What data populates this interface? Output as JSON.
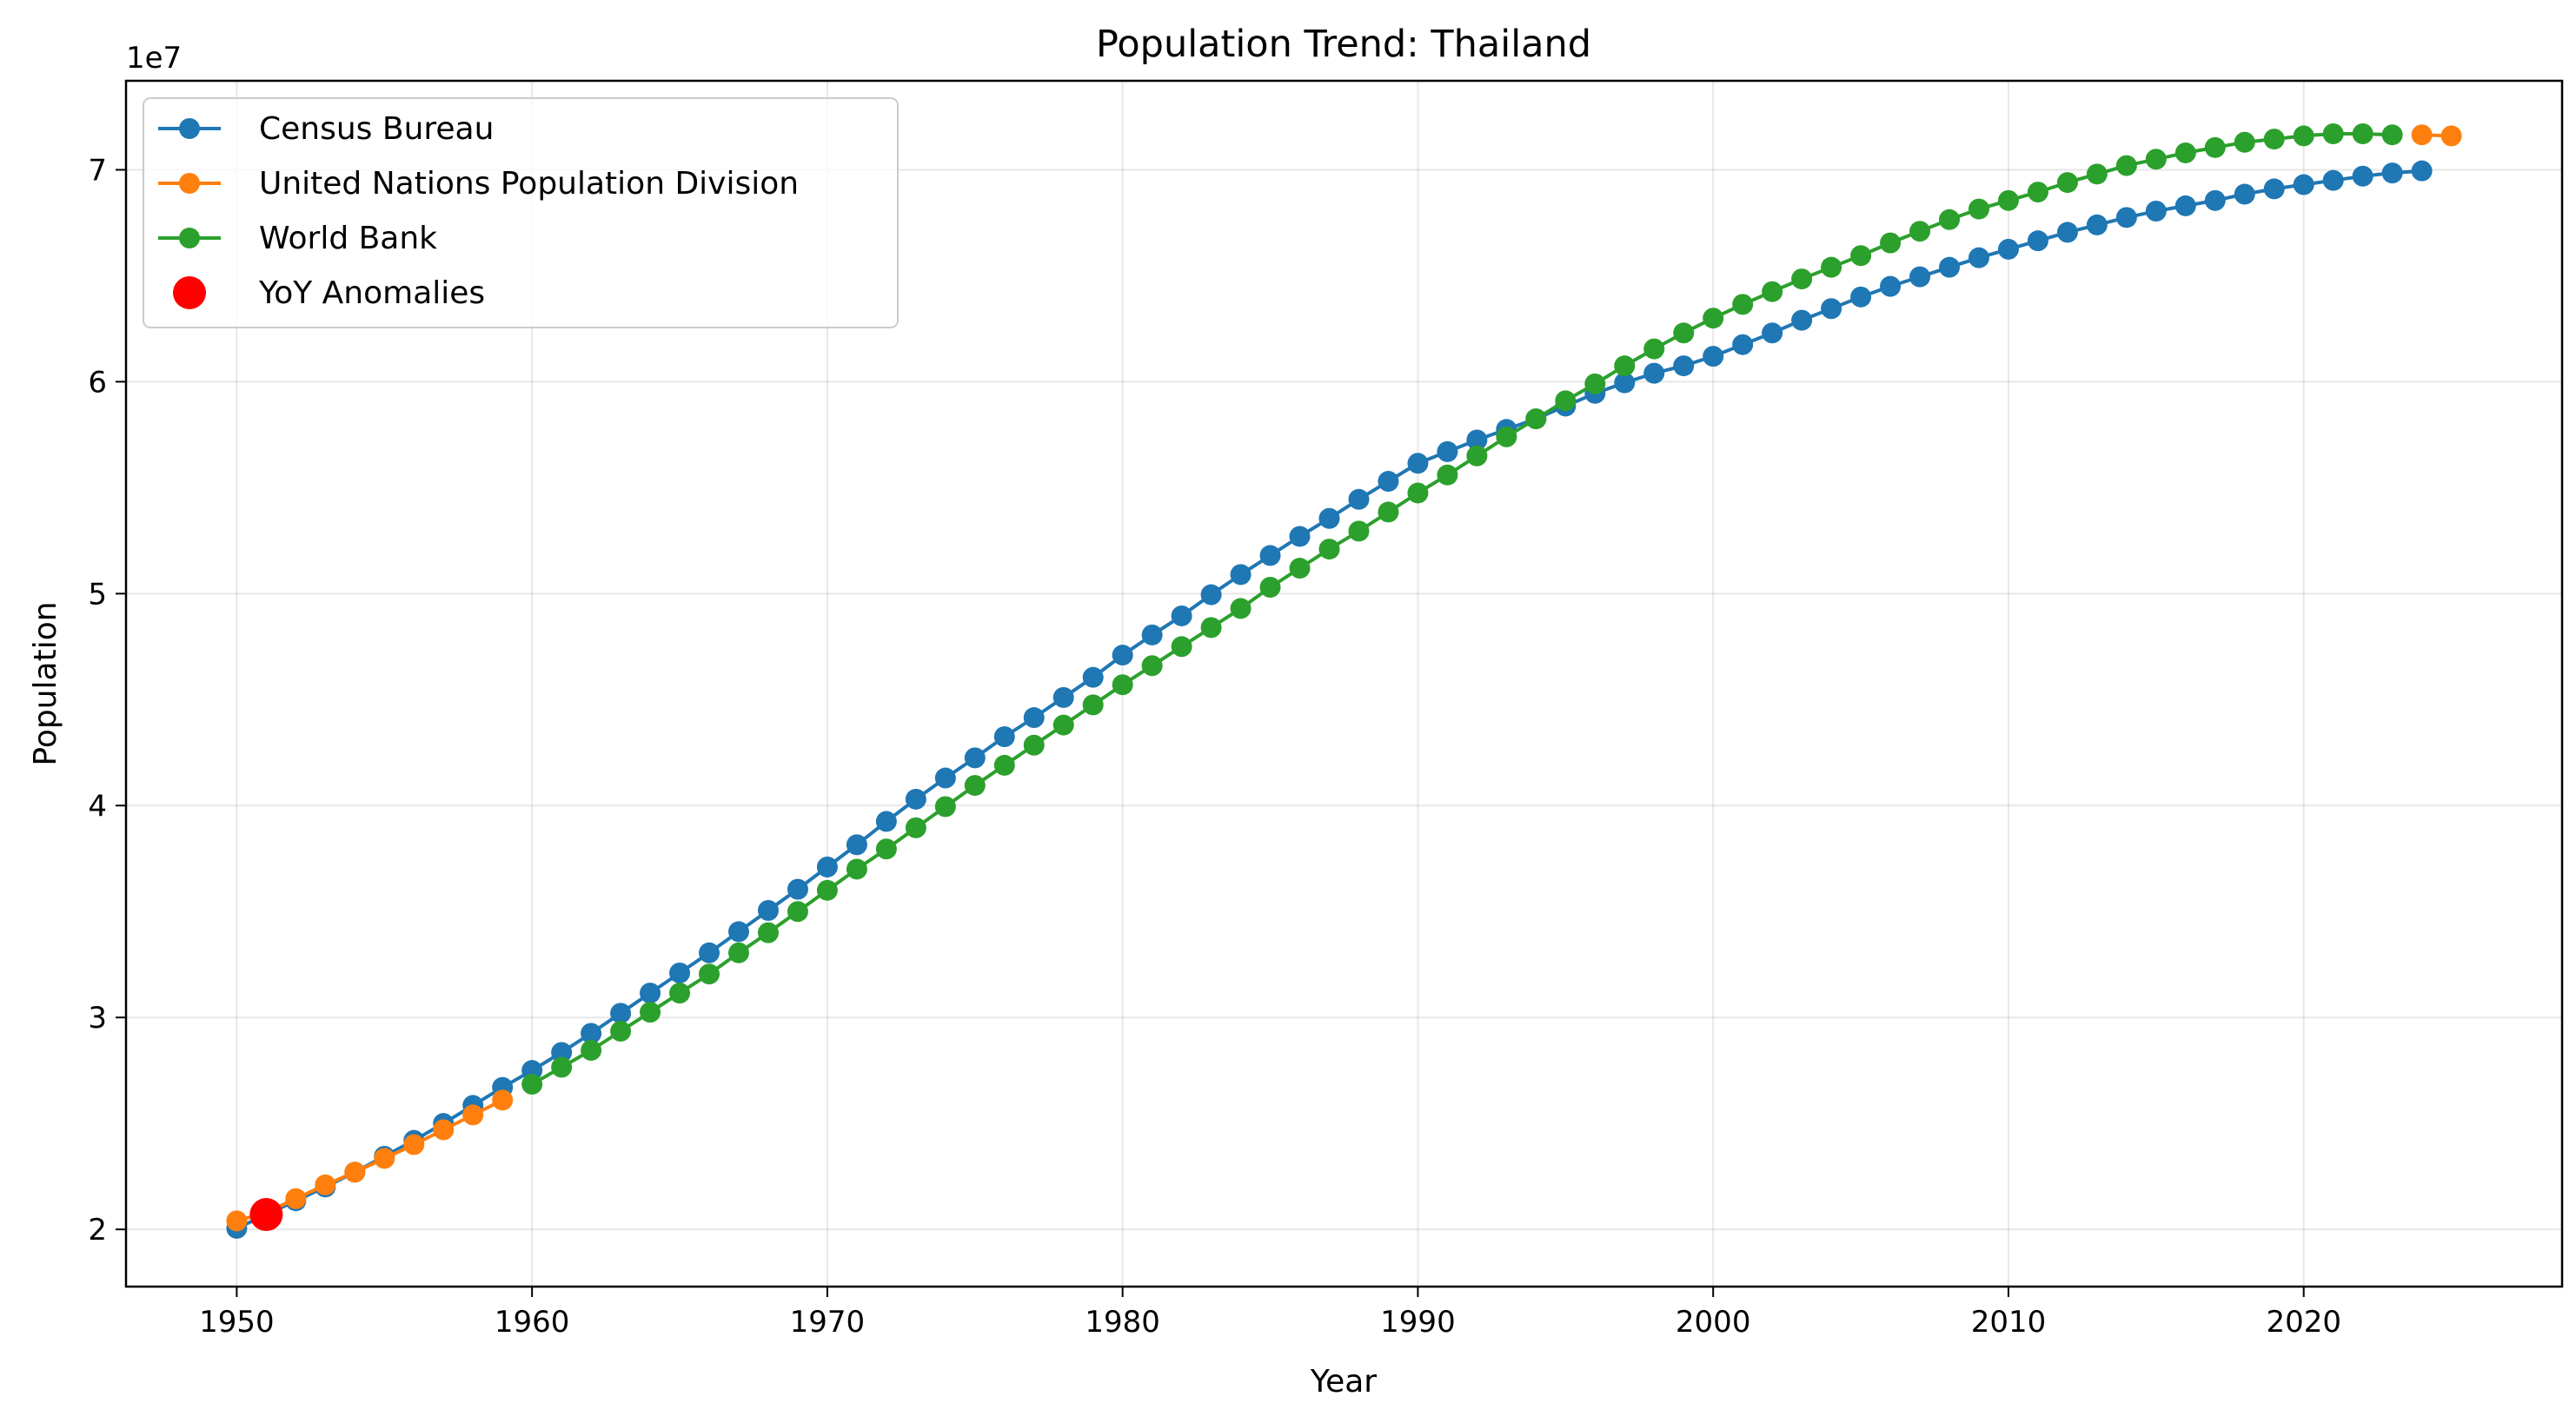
{
  "chart_data": {
    "type": "line",
    "title": "Population Trend: Thailand",
    "xlabel": "Year",
    "ylabel": "Population",
    "y_offset_label": "1e7",
    "xlim": [
      1946.25,
      2028.75
    ],
    "ylim": [
      17300000,
      74200000
    ],
    "y_multiplier": 10000000,
    "x_ticks": [
      1950,
      1960,
      1970,
      1980,
      1990,
      2000,
      2010,
      2020
    ],
    "y_ticks": [
      2,
      3,
      4,
      5,
      6,
      7
    ],
    "grid": true,
    "legend_position": "upper-left",
    "series": [
      {
        "name": "Census Bureau",
        "color": "#1f77b4",
        "x": [
          1950,
          1951,
          1952,
          1953,
          1954,
          1955,
          1956,
          1957,
          1958,
          1959,
          1960,
          1961,
          1962,
          1963,
          1964,
          1965,
          1966,
          1967,
          1968,
          1969,
          1970,
          1971,
          1972,
          1973,
          1974,
          1975,
          1976,
          1977,
          1978,
          1979,
          1980,
          1981,
          1982,
          1983,
          1984,
          1985,
          1986,
          1987,
          1988,
          1989,
          1990,
          1991,
          1992,
          1993,
          1994,
          1995,
          1996,
          1997,
          1998,
          1999,
          2000,
          2001,
          2002,
          2003,
          2004,
          2005,
          2006,
          2007,
          2008,
          2009,
          2010,
          2011,
          2012,
          2013,
          2014,
          2015,
          2016,
          2017,
          2018,
          2019,
          2020,
          2021,
          2022,
          2023,
          2024
        ],
        "y": [
          20050000,
          20700000,
          21350000,
          22000000,
          22700000,
          23450000,
          24200000,
          25000000,
          25850000,
          26700000,
          27500000,
          28350000,
          29250000,
          30200000,
          31150000,
          32100000,
          33050000,
          34050000,
          35050000,
          36050000,
          37100000,
          38150000,
          39250000,
          40300000,
          41300000,
          42250000,
          43250000,
          44150000,
          45100000,
          46050000,
          47100000,
          48050000,
          48950000,
          49950000,
          50900000,
          51800000,
          52700000,
          53550000,
          54450000,
          55300000,
          56150000,
          56700000,
          57250000,
          57750000,
          58250000,
          58850000,
          59450000,
          59950000,
          60400000,
          60750000,
          61200000,
          61750000,
          62300000,
          62900000,
          63450000,
          64000000,
          64500000,
          64950000,
          65400000,
          65850000,
          66250000,
          66650000,
          67050000,
          67400000,
          67750000,
          68050000,
          68300000,
          68550000,
          68850000,
          69100000,
          69300000,
          69500000,
          69700000,
          69850000,
          69950000
        ]
      },
      {
        "name": "United Nations Population Division",
        "color": "#ff7f0e",
        "x": [
          1950,
          1951,
          1952,
          1953,
          1954,
          1955,
          1956,
          1957,
          1958,
          1959,
          2024,
          2025
        ],
        "y": [
          20400000,
          20800000,
          21450000,
          22100000,
          22700000,
          23350000,
          24000000,
          24700000,
          25400000,
          26100000,
          71650000,
          71600000
        ]
      },
      {
        "name": "World Bank",
        "color": "#2ca02c",
        "x": [
          1960,
          1961,
          1962,
          1963,
          1964,
          1965,
          1966,
          1967,
          1968,
          1969,
          1970,
          1971,
          1972,
          1973,
          1974,
          1975,
          1976,
          1977,
          1978,
          1979,
          1980,
          1981,
          1982,
          1983,
          1984,
          1985,
          1986,
          1987,
          1988,
          1989,
          1990,
          1991,
          1992,
          1993,
          1994,
          1995,
          1996,
          1997,
          1998,
          1999,
          2000,
          2001,
          2002,
          2003,
          2004,
          2005,
          2006,
          2007,
          2008,
          2009,
          2010,
          2011,
          2012,
          2013,
          2014,
          2015,
          2016,
          2017,
          2018,
          2019,
          2020,
          2021,
          2022,
          2023
        ],
        "y": [
          26850000,
          27650000,
          28450000,
          29350000,
          30250000,
          31150000,
          32050000,
          33050000,
          34000000,
          35000000,
          36000000,
          37000000,
          37950000,
          38950000,
          39950000,
          40950000,
          41900000,
          42850000,
          43800000,
          44750000,
          45700000,
          46600000,
          47500000,
          48400000,
          49300000,
          50300000,
          51200000,
          52100000,
          52950000,
          53850000,
          54750000,
          55600000,
          56500000,
          57400000,
          58250000,
          59100000,
          59900000,
          60750000,
          61550000,
          62300000,
          63000000,
          63650000,
          64250000,
          64850000,
          65400000,
          65950000,
          66550000,
          67100000,
          67650000,
          68150000,
          68550000,
          68950000,
          69400000,
          69800000,
          70200000,
          70500000,
          70800000,
          71050000,
          71300000,
          71450000,
          71600000,
          71700000,
          71700000,
          71650000
        ]
      }
    ],
    "anomalies": {
      "name": "YoY Anomalies",
      "color": "#ff0000",
      "points": [
        {
          "x": 1951,
          "y": 20700000
        }
      ]
    }
  }
}
